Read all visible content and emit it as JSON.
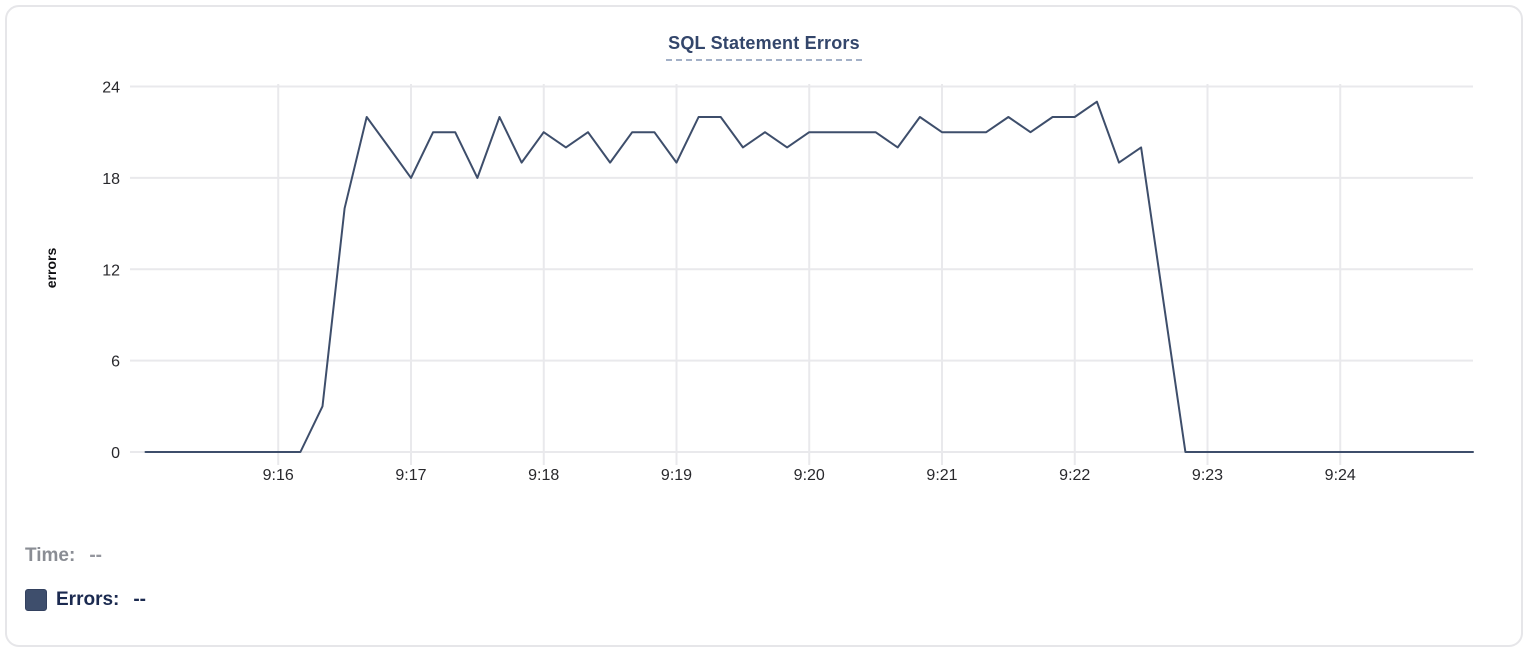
{
  "chart_data": {
    "type": "line",
    "title": "SQL Statement Errors",
    "xlabel": "",
    "ylabel": "errors",
    "x_ticks": [
      "9:16",
      "9:17",
      "9:18",
      "9:19",
      "9:20",
      "9:21",
      "9:22",
      "9:23",
      "9:24"
    ],
    "y_ticks": [
      0,
      6,
      12,
      18,
      24
    ],
    "ylim": [
      0,
      24
    ],
    "x_domain": [
      "9:14:53",
      "9:25:00"
    ],
    "grid": true,
    "legend_position": "none",
    "colors": {
      "line": "#3e4e6b",
      "gridline": "#e9e9ec",
      "title": "#33466b",
      "title_underline": "#a3b0c7",
      "tick_label": "#28282c"
    },
    "series": [
      {
        "name": "Errors",
        "color": "#3e4e6b",
        "points": [
          [
            "9:15:00",
            0
          ],
          [
            "9:15:10",
            0
          ],
          [
            "9:15:20",
            0
          ],
          [
            "9:15:30",
            0
          ],
          [
            "9:15:40",
            0
          ],
          [
            "9:15:50",
            0
          ],
          [
            "9:16:00",
            0
          ],
          [
            "9:16:10",
            0
          ],
          [
            "9:16:20",
            3
          ],
          [
            "9:16:30",
            16
          ],
          [
            "9:16:40",
            22
          ],
          [
            "9:16:50",
            20
          ],
          [
            "9:17:00",
            18
          ],
          [
            "9:17:10",
            21
          ],
          [
            "9:17:20",
            21
          ],
          [
            "9:17:30",
            18
          ],
          [
            "9:17:40",
            22
          ],
          [
            "9:17:50",
            19
          ],
          [
            "9:18:00",
            21
          ],
          [
            "9:18:10",
            20
          ],
          [
            "9:18:20",
            21
          ],
          [
            "9:18:30",
            19
          ],
          [
            "9:18:40",
            21
          ],
          [
            "9:18:50",
            21
          ],
          [
            "9:19:00",
            19
          ],
          [
            "9:19:10",
            22
          ],
          [
            "9:19:20",
            22
          ],
          [
            "9:19:30",
            20
          ],
          [
            "9:19:40",
            21
          ],
          [
            "9:19:50",
            20
          ],
          [
            "9:20:00",
            21
          ],
          [
            "9:20:10",
            21
          ],
          [
            "9:20:20",
            21
          ],
          [
            "9:20:30",
            21
          ],
          [
            "9:20:40",
            20
          ],
          [
            "9:20:50",
            22
          ],
          [
            "9:21:00",
            21
          ],
          [
            "9:21:10",
            21
          ],
          [
            "9:21:20",
            21
          ],
          [
            "9:21:30",
            22
          ],
          [
            "9:21:40",
            21
          ],
          [
            "9:21:50",
            22
          ],
          [
            "9:22:00",
            22
          ],
          [
            "9:22:10",
            23
          ],
          [
            "9:22:20",
            19
          ],
          [
            "9:22:30",
            20
          ],
          [
            "9:22:40",
            10
          ],
          [
            "9:22:50",
            0
          ],
          [
            "9:23:00",
            0
          ],
          [
            "9:23:10",
            0
          ],
          [
            "9:23:20",
            0
          ],
          [
            "9:23:30",
            0
          ],
          [
            "9:23:40",
            0
          ],
          [
            "9:23:50",
            0
          ],
          [
            "9:24:00",
            0
          ],
          [
            "9:24:10",
            0
          ],
          [
            "9:24:20",
            0
          ],
          [
            "9:24:30",
            0
          ],
          [
            "9:24:40",
            0
          ],
          [
            "9:24:50",
            0
          ],
          [
            "9:25:00",
            0
          ]
        ]
      }
    ]
  },
  "tooltip_legend": {
    "time_label": "Time:",
    "time_value": "--",
    "errors_label": "Errors:",
    "errors_value": "--",
    "swatch_color": "#3e4e6c",
    "time_color": "#8a8d94",
    "errors_color": "#1b2a50"
  }
}
